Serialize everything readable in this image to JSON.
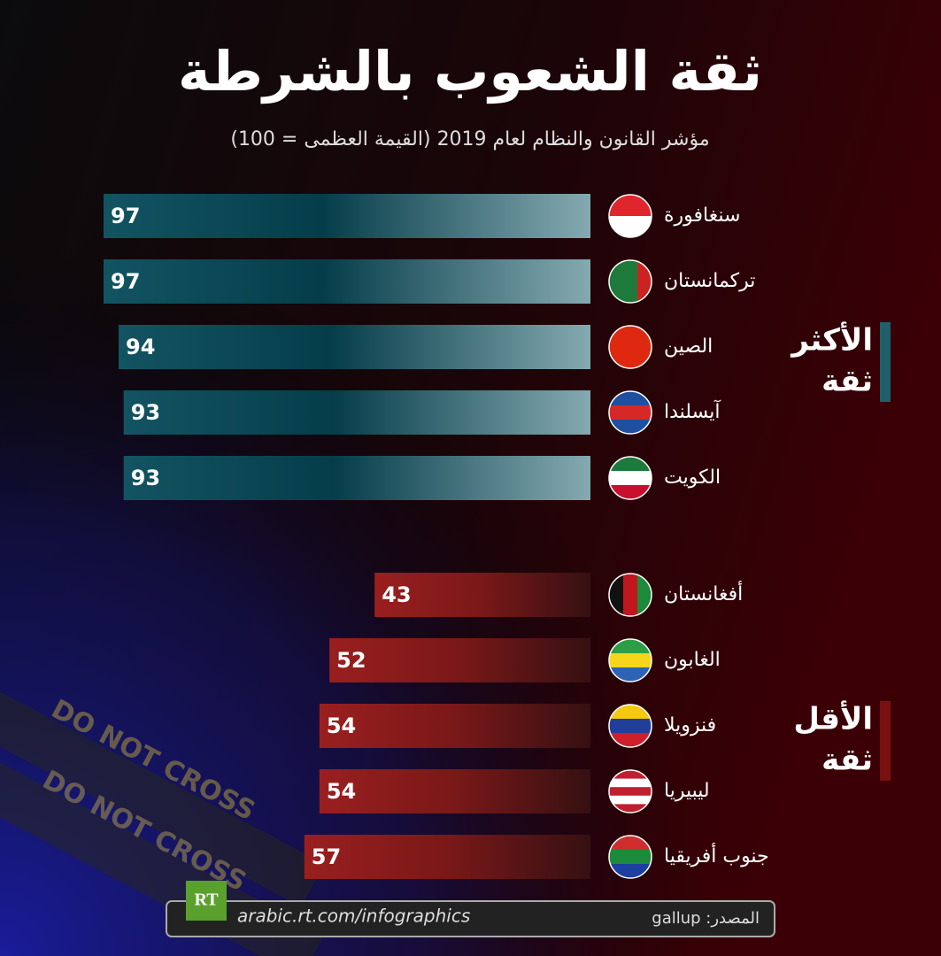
{
  "title": "ثقة الشعوب بالشرطة",
  "subtitle": "مؤشر القانون والنظام لعام 2019 (القيمة العظمى = 100)",
  "chart_data": [
    {
      "type": "bar",
      "group_label": [
        "الأكثر",
        "ثقة"
      ],
      "color": "#1f5f6b",
      "categories": [
        "سنغافورة",
        "تركمانستان",
        "الصين",
        "آيسلندا",
        "الكويت"
      ],
      "values": [
        97,
        97,
        94,
        93,
        93
      ],
      "xlim": [
        0,
        100
      ]
    },
    {
      "type": "bar",
      "group_label": [
        "الأقل",
        "ثقة"
      ],
      "color": "#8b1a1a",
      "categories": [
        "أفغانستان",
        "الغابون",
        "فنزويلا",
        "ليبيريا",
        "جنوب أفريقيا"
      ],
      "values": [
        43,
        52,
        54,
        54,
        57
      ],
      "xlim": [
        0,
        100
      ]
    }
  ],
  "tape_texts": [
    "DO NOT CROSS",
    "DO NOT CROSS"
  ],
  "logo": "RT",
  "url": "arabic.rt.com/infographics",
  "source": "المصدر: gallup"
}
